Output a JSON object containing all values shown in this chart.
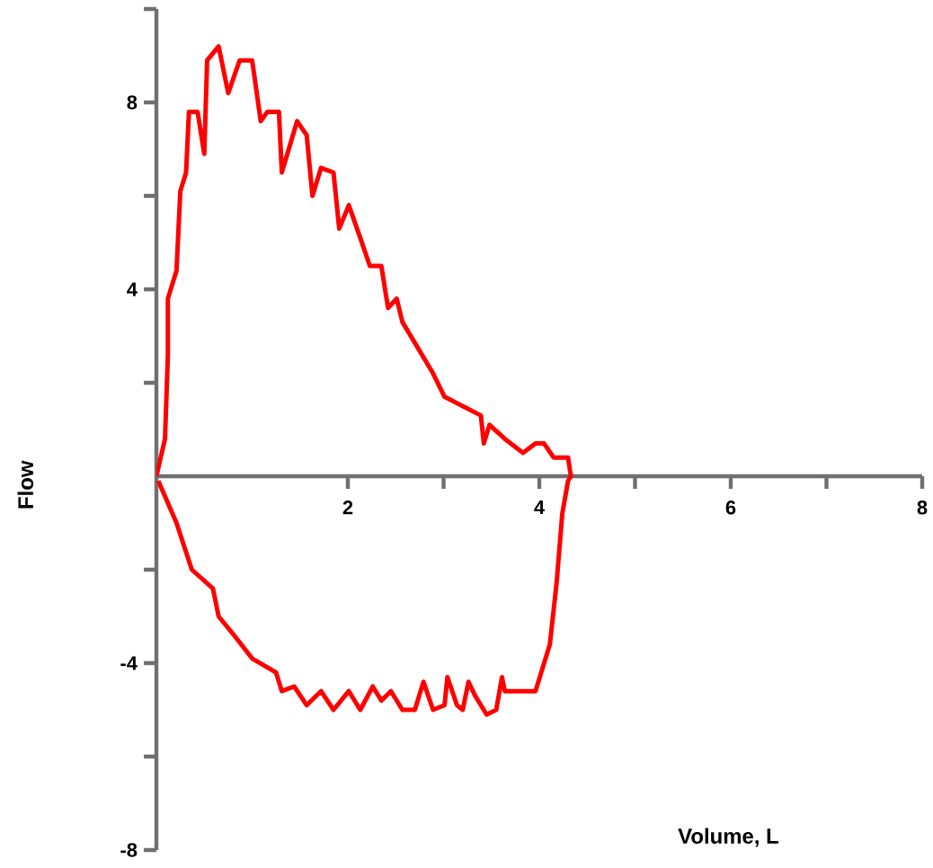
{
  "chart_data": {
    "type": "line",
    "xlabel": "Volume, L",
    "ylabel": "Flow",
    "x": [
      0,
      0.09,
      0.12,
      0.12,
      0.21,
      0.25,
      0.31,
      0.34,
      0.43,
      0.5,
      0.53,
      0.65,
      0.75,
      0.87,
      1.0,
      1.09,
      1.16,
      1.28,
      1.31,
      1.47,
      1.57,
      1.63,
      1.72,
      1.85,
      1.91,
      2.01,
      2.13,
      2.23,
      2.35,
      2.42,
      2.51,
      2.57,
      2.89,
      3.01,
      3.2,
      3.39,
      3.42,
      3.48,
      3.64,
      3.83,
      3.96,
      4.05,
      4.15,
      4.3,
      4.33,
      4.3,
      4.24,
      4.18,
      4.11,
      3.96,
      3.64,
      3.61,
      3.55,
      3.45,
      3.33,
      3.26,
      3.2,
      3.14,
      3.04,
      3.01,
      2.89,
      2.79,
      2.7,
      2.57,
      2.45,
      2.35,
      2.26,
      2.13,
      2.01,
      1.85,
      1.72,
      1.57,
      1.44,
      1.31,
      1.25,
      1.0,
      0.81,
      0.65,
      0.59,
      0.37,
      0.21,
      0.02
    ],
    "values": [
      0,
      0.8,
      2.6,
      3.8,
      4.4,
      6.1,
      6.5,
      7.8,
      7.8,
      6.9,
      8.9,
      9.2,
      8.2,
      8.9,
      8.9,
      7.6,
      7.8,
      7.8,
      6.5,
      7.6,
      7.3,
      6.0,
      6.6,
      6.5,
      5.3,
      5.8,
      5.1,
      4.5,
      4.5,
      3.6,
      3.8,
      3.3,
      2.2,
      1.7,
      1.5,
      1.3,
      0.7,
      1.1,
      0.8,
      0.5,
      0.7,
      0.7,
      0.4,
      0.4,
      0,
      -0.1,
      -0.8,
      -2.3,
      -3.6,
      -4.6,
      -4.6,
      -4.3,
      -5.0,
      -5.1,
      -4.7,
      -4.4,
      -5.0,
      -4.9,
      -4.3,
      -4.9,
      -5.0,
      -4.4,
      -5.0,
      -5.0,
      -4.6,
      -4.8,
      -4.5,
      -5.0,
      -4.6,
      -5.0,
      -4.6,
      -4.9,
      -4.5,
      -4.6,
      -4.2,
      -3.9,
      -3.4,
      -3.0,
      -2.4,
      -2.0,
      -1.0,
      -0.1
    ],
    "color": "#ff0000",
    "marker": "none",
    "line_style": "solid",
    "grid": false,
    "xlim": [
      0,
      8
    ],
    "ylim": [
      -8,
      10
    ],
    "xticks": [
      2,
      {
        "value": 3,
        "label": null
      },
      4,
      {
        "value": 5,
        "label": null
      },
      6,
      {
        "value": 7,
        "label": null
      },
      8
    ],
    "yticks": [
      -8,
      {
        "value": -6,
        "label": null
      },
      -4,
      {
        "value": -2,
        "label": null
      },
      {
        "value": 2,
        "label": null
      },
      4,
      {
        "value": 6,
        "label": null
      },
      8,
      {
        "value": 10,
        "label": null
      }
    ]
  }
}
